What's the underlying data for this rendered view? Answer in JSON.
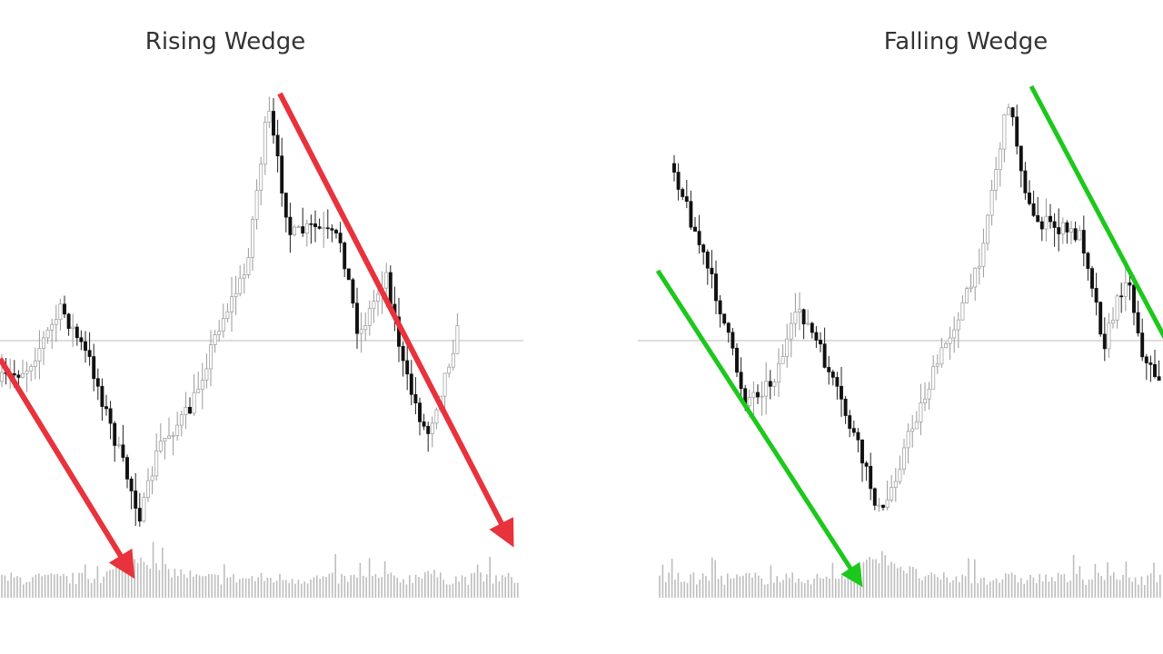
{
  "panels": [
    {
      "title": "Rising Wedge"
    },
    {
      "title": "Falling Wedge"
    }
  ]
}
